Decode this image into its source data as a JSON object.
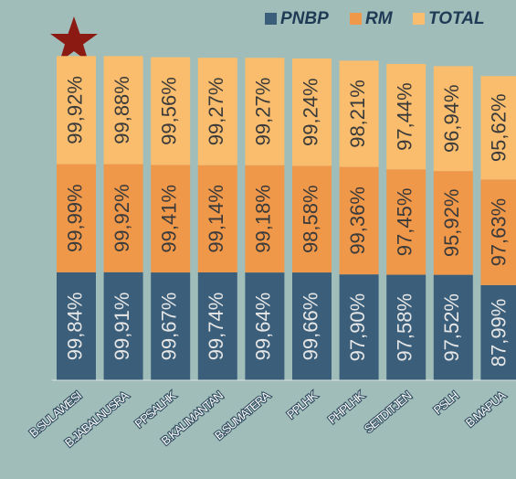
{
  "chart_data": {
    "type": "stacked_bar",
    "categories": [
      "B.SULAWESI",
      "B.JABALNUSRA",
      "PPSALHK",
      "B.KALIMANTAN",
      "B.SUMATERA",
      "PPLHK",
      "PHPLHK",
      "SETDITJEN",
      "PSLH",
      "B.MAPUA"
    ],
    "series": [
      {
        "name": "PNBP",
        "color": "#3b5f7b",
        "values": [
          99.84,
          99.91,
          99.67,
          99.74,
          99.64,
          99.66,
          97.9,
          97.58,
          97.52,
          87.99
        ],
        "value_labels": [
          "99,84%",
          "99,91%",
          "99,67%",
          "99,74%",
          "99,64%",
          "99,66%",
          "97,90%",
          "97,58%",
          "97,52%",
          "87,99%"
        ]
      },
      {
        "name": "RM",
        "color": "#f0984a",
        "values": [
          99.99,
          99.92,
          99.41,
          99.14,
          99.18,
          98.58,
          99.36,
          97.45,
          95.92,
          97.63
        ],
        "value_labels": [
          "99,99%",
          "99,92%",
          "99,41%",
          "99,14%",
          "99,18%",
          "98,58%",
          "99,36%",
          "97,45%",
          "95,92%",
          "97,63%"
        ]
      },
      {
        "name": "TOTAL",
        "color": "#f9bd6d",
        "values": [
          99.92,
          99.88,
          99.56,
          99.27,
          99.27,
          99.24,
          98.21,
          97.44,
          96.94,
          95.62
        ],
        "value_labels": [
          "99,92%",
          "99,88%",
          "99,56%",
          "99,27%",
          "99,27%",
          "99,24%",
          "98,21%",
          "97,44%",
          "96,94%",
          "95,62%"
        ]
      }
    ],
    "ylim": [
      0,
      300
    ],
    "legend": "top-right"
  }
}
